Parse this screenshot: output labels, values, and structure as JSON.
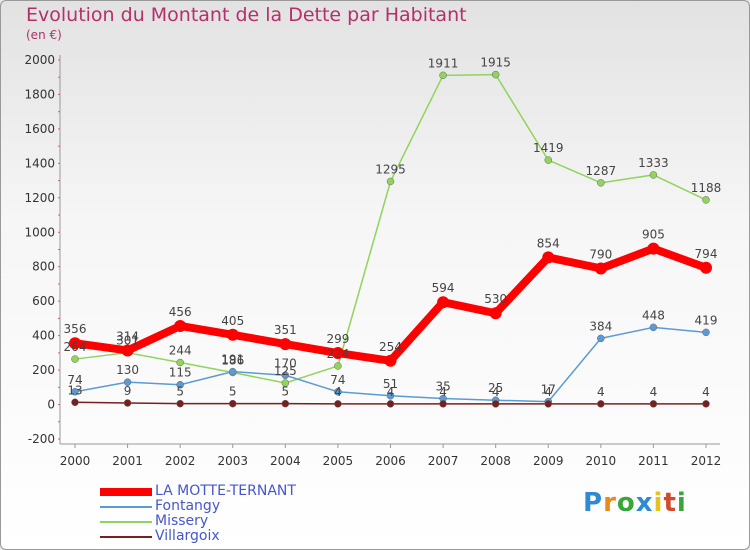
{
  "header": {
    "title": "Evolution du Montant de la Dette par Habitant",
    "subtitle": "(en €)"
  },
  "logo": {
    "text": "Proxiti"
  },
  "chart_data": {
    "type": "line",
    "title": "Evolution du Montant de la Dette par Habitant",
    "subtitle": "(en €)",
    "xlabel": "",
    "ylabel": "",
    "x": [
      "2000",
      "2001",
      "2002",
      "2003",
      "2004",
      "2005",
      "2006",
      "2007",
      "2008",
      "2009",
      "2010",
      "2011",
      "2012"
    ],
    "ylim": [
      -200,
      2000
    ],
    "yticks": [
      -200,
      0,
      200,
      400,
      600,
      800,
      1000,
      1200,
      1400,
      1600,
      1800,
      2000
    ],
    "grid": false,
    "legend": "bottom-left",
    "series": [
      {
        "name": "LA MOTTE-TERNANT",
        "color": "#ff0000",
        "values": [
          356,
          314,
          456,
          405,
          351,
          299,
          254,
          594,
          530,
          854,
          790,
          905,
          794
        ]
      },
      {
        "name": "Fontangy",
        "color": "#5b9bd5",
        "values": [
          74,
          130,
          115,
          191,
          170,
          74,
          51,
          35,
          25,
          17,
          384,
          448,
          419
        ]
      },
      {
        "name": "Missery",
        "color": "#8fd45b",
        "values": [
          264,
          301,
          244,
          186,
          125,
          224,
          1295,
          1911,
          1915,
          1419,
          1287,
          1333,
          1188
        ]
      },
      {
        "name": "Villargoix",
        "color": "#7a1f1f",
        "values": [
          13,
          9,
          5,
          5,
          5,
          4,
          4,
          4,
          4,
          4,
          4,
          4,
          4
        ]
      }
    ]
  }
}
